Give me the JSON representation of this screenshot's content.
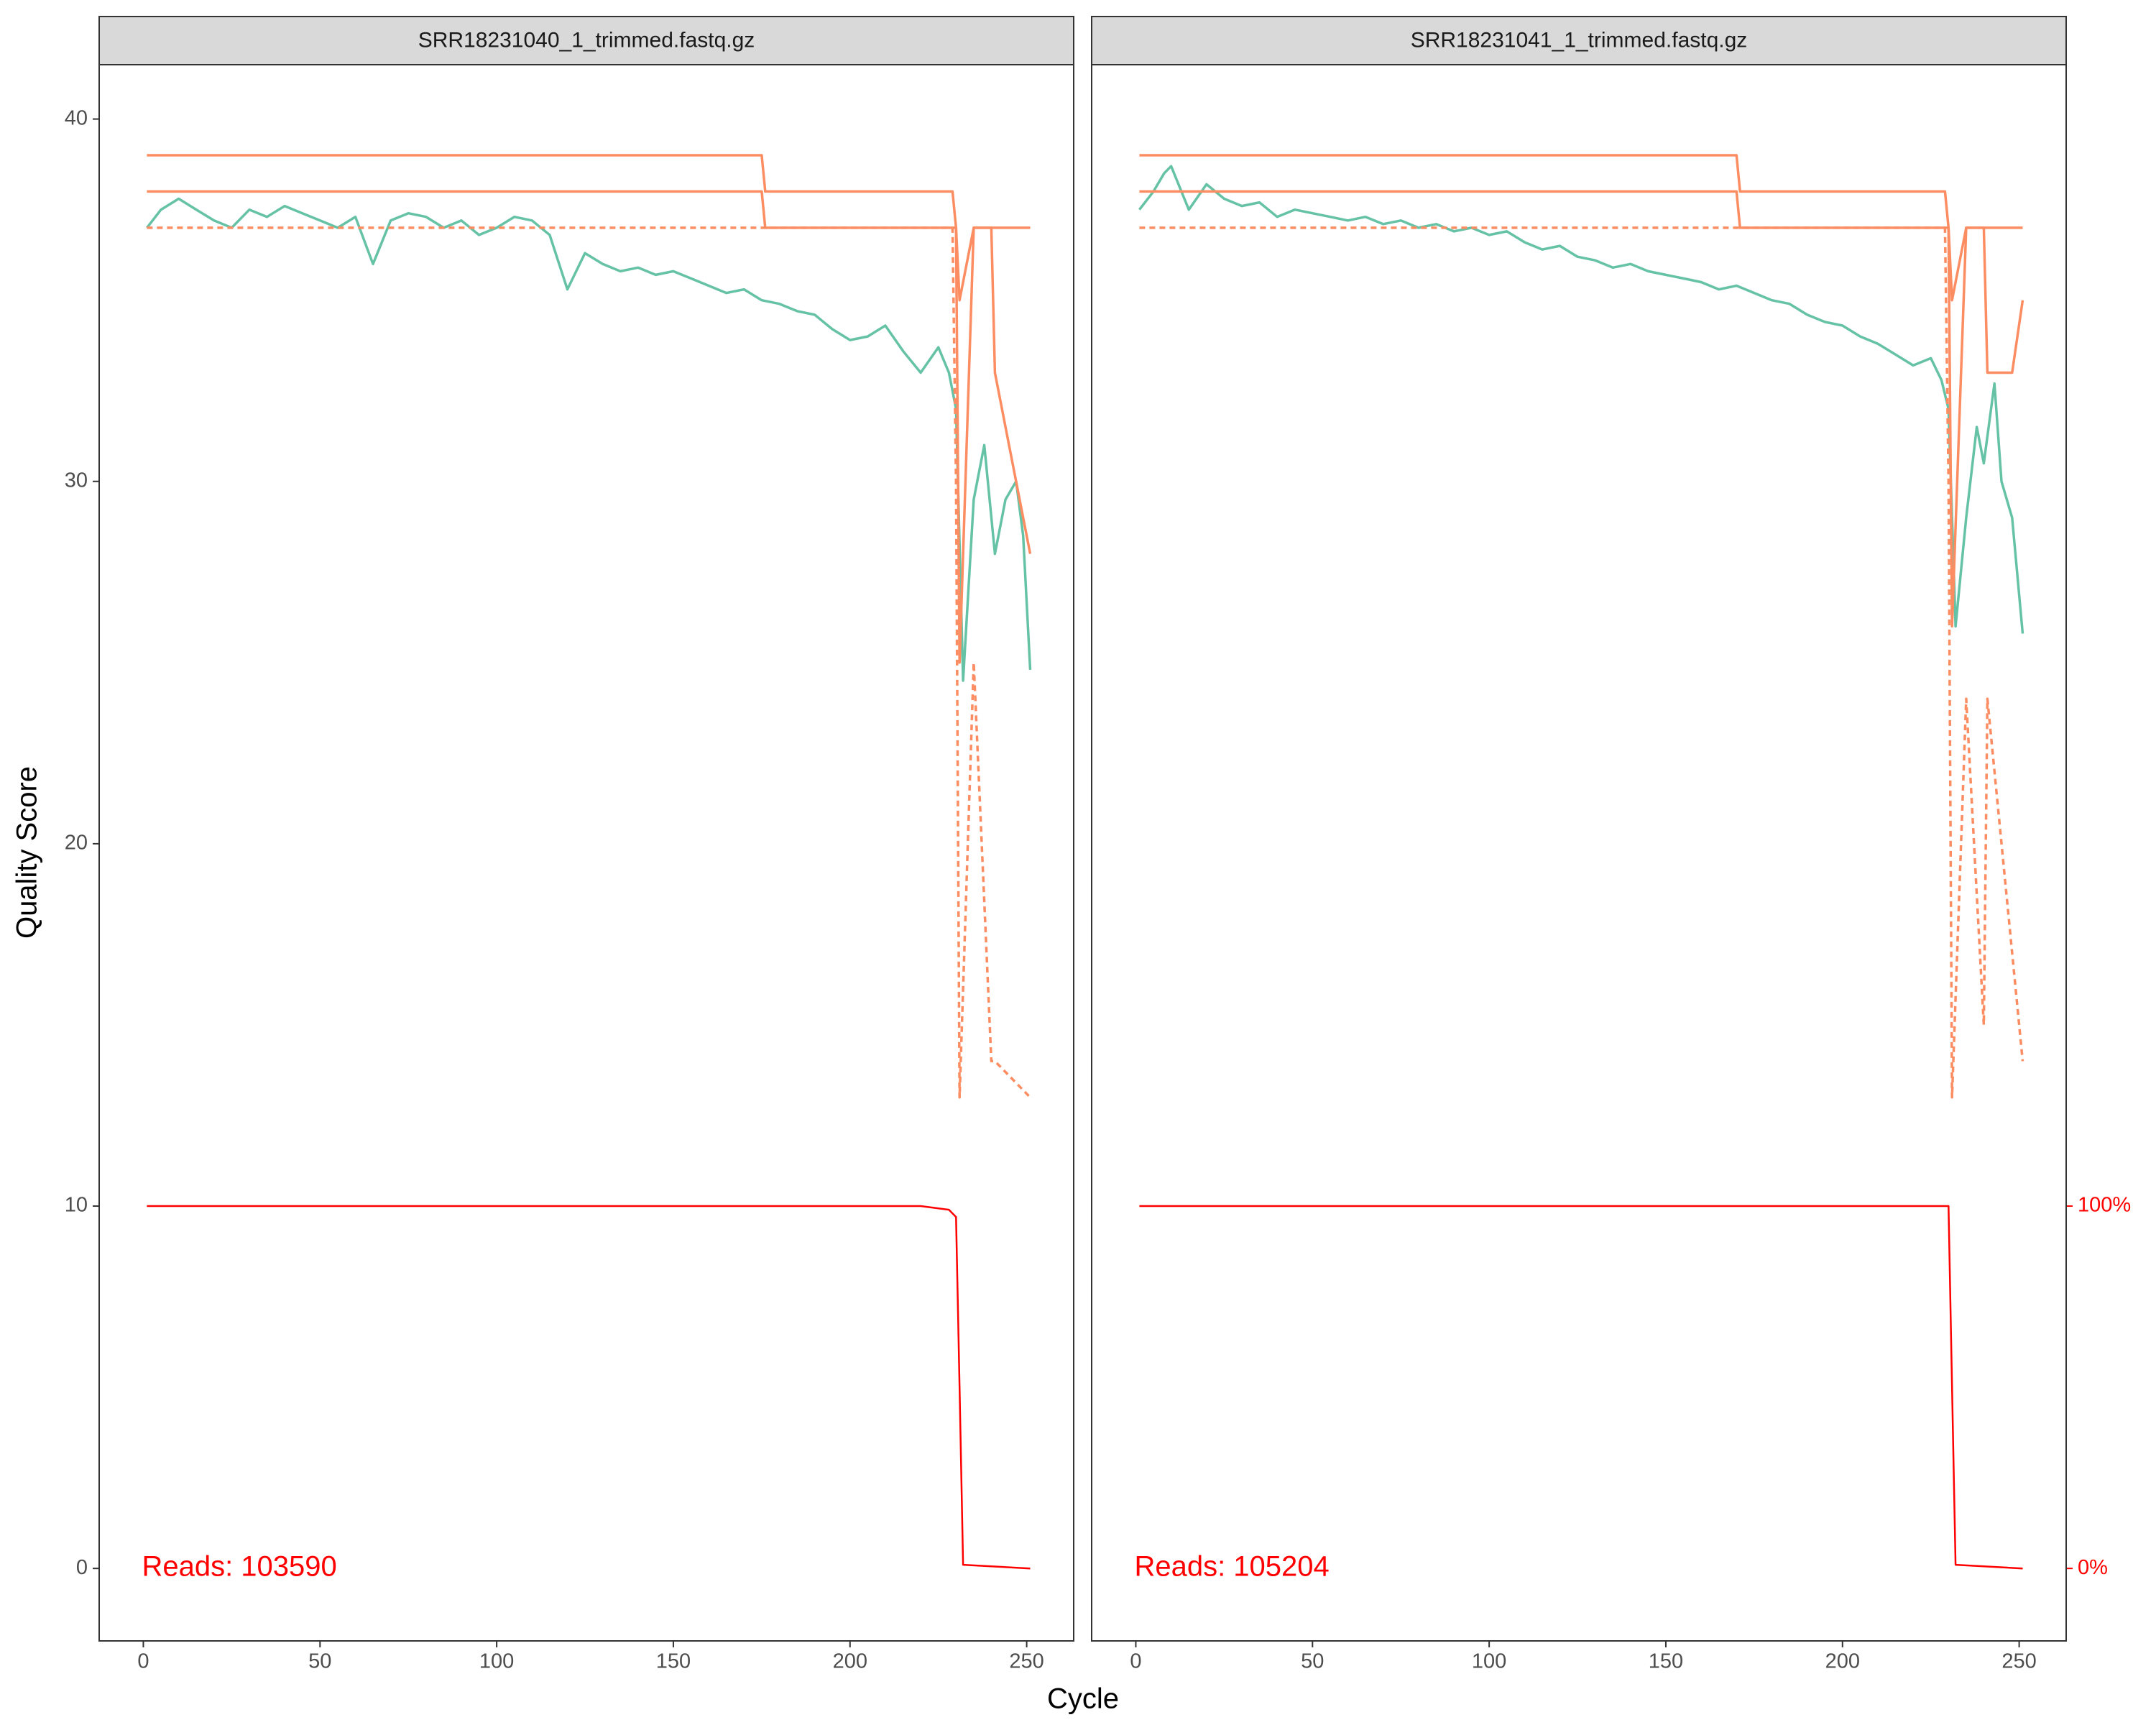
{
  "chart_data": {
    "type": "line",
    "x_label": "Cycle",
    "y_label": "Quality Score",
    "xlim": [
      -12.5,
      263.3
    ],
    "ylim": [
      -2.0,
      41.5
    ],
    "xticks": [
      0,
      50,
      100,
      150,
      200,
      250
    ],
    "yticks": [
      0,
      10,
      20,
      30,
      40
    ],
    "y2lim": [
      -20,
      415
    ],
    "y2ticks": [
      {
        "value": 0,
        "label": "0%"
      },
      {
        "value": 100,
        "label": "100%"
      }
    ],
    "facets": [
      {
        "title": "SRR18231040_1_trimmed.fastq.gz",
        "annotation": "Reads:  103590",
        "series": [
          {
            "color": "#66c2a5",
            "dash": false,
            "x": [
              1,
              5,
              10,
              15,
              20,
              25,
              30,
              35,
              40,
              45,
              50,
              55,
              60,
              65,
              70,
              75,
              80,
              85,
              90,
              95,
              100,
              105,
              110,
              115,
              120,
              125,
              130,
              135,
              140,
              145,
              150,
              155,
              160,
              165,
              170,
              175,
              180,
              185,
              190,
              195,
              200,
              205,
              210,
              215,
              220,
              225,
              228,
              230,
              232,
              235,
              238,
              241,
              244,
              247,
              249,
              251
            ],
            "values": [
              37.0,
              37.5,
              37.8,
              37.5,
              37.2,
              37.0,
              37.5,
              37.3,
              37.6,
              37.4,
              37.2,
              37.0,
              37.3,
              36.0,
              37.2,
              37.4,
              37.3,
              37.0,
              37.2,
              36.8,
              37.0,
              37.3,
              37.2,
              36.8,
              35.3,
              36.3,
              36.0,
              35.8,
              35.9,
              35.7,
              35.8,
              35.6,
              35.4,
              35.2,
              35.3,
              35.0,
              34.9,
              34.7,
              34.6,
              34.2,
              33.9,
              34.0,
              34.3,
              33.6,
              33.0,
              33.7,
              33.0,
              32.0,
              24.5,
              29.5,
              31.0,
              28.0,
              29.5,
              30.0,
              28.5,
              24.8
            ]
          },
          {
            "color": "#fc8d62",
            "dash": false,
            "x": [
              1,
              100,
              175,
              176,
              229,
              230,
              231,
              235,
              240,
              241,
              251
            ],
            "values": [
              39,
              39,
              39,
              38,
              38,
              37,
              35,
              37,
              37,
              37,
              37
            ]
          },
          {
            "color": "#fc8d62",
            "dash": false,
            "x": [
              1,
              100,
              175,
              176,
              229,
              230,
              231,
              235,
              240,
              241,
              251
            ],
            "values": [
              38,
              38,
              38,
              37,
              37,
              37,
              25,
              37,
              37,
              33,
              28
            ]
          },
          {
            "color": "#fc8d62",
            "dash": true,
            "x": [
              1,
              100,
              175,
              176,
              229,
              230,
              231,
              235,
              240,
              241,
              251
            ],
            "values": [
              37,
              37,
              37,
              37,
              37,
              30,
              13,
              25,
              14,
              14,
              13
            ]
          },
          {
            "color": "#ff0000",
            "dash": false,
            "axis": "y2",
            "x": [
              1,
              220,
              228,
              230,
              231,
              232,
              251
            ],
            "values": [
              100,
              100,
              99,
              97,
              50,
              1,
              0
            ]
          }
        ]
      },
      {
        "title": "SRR18231041_1_trimmed.fastq.gz",
        "annotation": "Reads:  105204",
        "series": [
          {
            "color": "#66c2a5",
            "dash": false,
            "x": [
              1,
              5,
              8,
              10,
              15,
              20,
              25,
              30,
              35,
              40,
              45,
              50,
              55,
              60,
              65,
              70,
              75,
              80,
              85,
              90,
              95,
              100,
              105,
              110,
              115,
              120,
              125,
              130,
              135,
              140,
              145,
              150,
              155,
              160,
              165,
              170,
              175,
              180,
              185,
              190,
              195,
              200,
              205,
              210,
              215,
              220,
              225,
              228,
              230,
              232,
              235,
              238,
              240,
              243,
              245,
              248,
              251
            ],
            "values": [
              37.5,
              38.0,
              38.5,
              38.7,
              37.5,
              38.2,
              37.8,
              37.6,
              37.7,
              37.3,
              37.5,
              37.4,
              37.3,
              37.2,
              37.3,
              37.1,
              37.2,
              37.0,
              37.1,
              36.9,
              37.0,
              36.8,
              36.9,
              36.6,
              36.4,
              36.5,
              36.2,
              36.1,
              35.9,
              36.0,
              35.8,
              35.7,
              35.6,
              35.5,
              35.3,
              35.4,
              35.2,
              35.0,
              34.9,
              34.6,
              34.4,
              34.3,
              34.0,
              33.8,
              33.5,
              33.2,
              33.4,
              32.8,
              32.0,
              26.0,
              29.0,
              31.5,
              30.5,
              32.7,
              30.0,
              29.0,
              25.8
            ]
          },
          {
            "color": "#fc8d62",
            "dash": false,
            "x": [
              1,
              100,
              170,
              171,
              229,
              230,
              231,
              235,
              240,
              241,
              251
            ],
            "values": [
              39,
              39,
              39,
              38,
              38,
              37,
              35,
              37,
              37,
              37,
              37
            ]
          },
          {
            "color": "#fc8d62",
            "dash": false,
            "x": [
              1,
              100,
              170,
              171,
              229,
              230,
              231,
              235,
              240,
              241,
              248,
              251
            ],
            "values": [
              38,
              38,
              38,
              37,
              37,
              37,
              26,
              37,
              37,
              33,
              33,
              35
            ]
          },
          {
            "color": "#fc8d62",
            "dash": true,
            "x": [
              1,
              100,
              170,
              171,
              229,
              230,
              231,
              235,
              240,
              241,
              251
            ],
            "values": [
              37,
              37,
              37,
              37,
              37,
              30,
              13,
              24,
              15,
              24,
              14
            ]
          },
          {
            "color": "#ff0000",
            "dash": false,
            "axis": "y2",
            "x": [
              1,
              220,
              229,
              230,
              231,
              232,
              251
            ],
            "values": [
              100,
              100,
              100,
              100,
              50,
              1,
              0
            ]
          }
        ]
      }
    ]
  }
}
